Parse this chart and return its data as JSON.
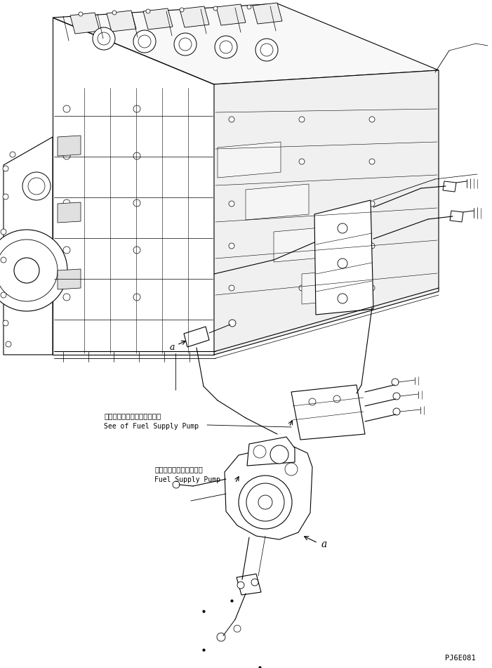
{
  "bg_color": "#ffffff",
  "line_color": "#000000",
  "line_width": 0.8,
  "figsize": [
    7.01,
    9.51
  ],
  "dpi": 100,
  "annotation1_jp": "フェエルサプライポンプ参照",
  "annotation1_en": "See of Fuel Supply Pump",
  "annotation2_jp": "フェエルサプライポンプ",
  "annotation2_en": "Fuel Supply Pump",
  "label_a1": "a",
  "label_a2": "a",
  "part_code": "PJ6E081"
}
